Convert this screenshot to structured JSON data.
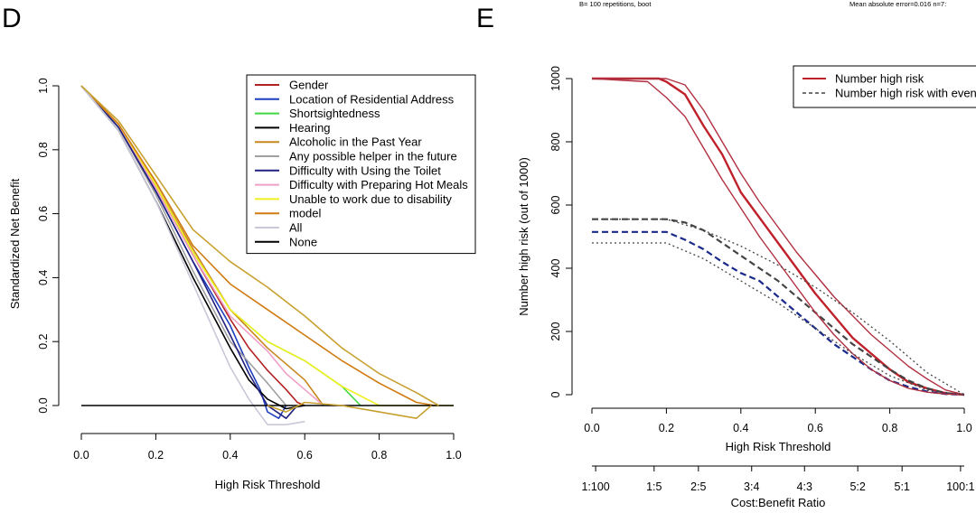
{
  "panel_d": {
    "letter": "D",
    "chart_data": {
      "type": "line",
      "title": "",
      "xlabel": "High Risk Threshold",
      "ylabel": "Standardized Net Benefit",
      "xlim": [
        0,
        1
      ],
      "ylim": [
        -0.05,
        1.0
      ],
      "x_ticks": [
        0,
        0.2,
        0.4,
        0.6,
        0.8,
        1.0
      ],
      "x_tick_labels": [
        "0.0",
        "0.2",
        "0.4",
        "0.6",
        "0.8",
        "1.0"
      ],
      "y_ticks": [
        0,
        0.2,
        0.4,
        0.6,
        0.8,
        1.0
      ],
      "y_tick_labels": [
        "0.0",
        "0.2",
        "0.4",
        "0.6",
        "0.8",
        "1.0"
      ],
      "legend_position": "top-right",
      "series": [
        {
          "name": "Gender",
          "color": "#b22222",
          "x": [
            0,
            0.1,
            0.2,
            0.3,
            0.4,
            0.45,
            0.5,
            0.55,
            0.58,
            0.6
          ],
          "y": [
            1.0,
            0.88,
            0.68,
            0.47,
            0.27,
            0.18,
            0.11,
            0.05,
            0.01,
            0.0
          ]
        },
        {
          "name": "Location of Residential Address",
          "color": "#1f3fbf",
          "x": [
            0,
            0.1,
            0.2,
            0.3,
            0.4,
            0.45,
            0.48,
            0.5,
            0.53,
            0.55
          ],
          "y": [
            1.0,
            0.87,
            0.67,
            0.45,
            0.25,
            0.12,
            0.05,
            -0.02,
            -0.04,
            0.0
          ]
        },
        {
          "name": "Shortsightedness",
          "color": "#40d840",
          "x": [
            0,
            0.1,
            0.2,
            0.3,
            0.4,
            0.5,
            0.6,
            0.7,
            0.75
          ],
          "y": [
            1.0,
            0.88,
            0.69,
            0.48,
            0.3,
            0.2,
            0.14,
            0.06,
            0.0
          ]
        },
        {
          "name": "Hearing",
          "color": "#000000",
          "x": [
            0,
            0.1,
            0.2,
            0.3,
            0.4,
            0.45,
            0.5,
            0.55,
            0.6
          ],
          "y": [
            1.0,
            0.86,
            0.64,
            0.4,
            0.18,
            0.08,
            0.02,
            -0.01,
            0.0
          ]
        },
        {
          "name": "Alcoholic in the Past Year",
          "color": "#c8861e",
          "x": [
            0,
            0.1,
            0.2,
            0.3,
            0.4,
            0.5,
            0.6,
            0.65
          ],
          "y": [
            1.0,
            0.88,
            0.69,
            0.49,
            0.3,
            0.18,
            0.08,
            0.0
          ]
        },
        {
          "name": "Any possible helper in the future",
          "color": "#a0a0a0",
          "x": [
            0,
            0.1,
            0.2,
            0.3,
            0.4,
            0.5,
            0.55
          ],
          "y": [
            1.0,
            0.87,
            0.66,
            0.42,
            0.2,
            0.07,
            0.0
          ]
        },
        {
          "name": "Difficulty with Using the Toilet",
          "color": "#202080",
          "x": [
            0,
            0.1,
            0.2,
            0.3,
            0.4,
            0.45,
            0.5,
            0.55,
            0.58
          ],
          "y": [
            1.0,
            0.87,
            0.67,
            0.45,
            0.22,
            0.1,
            0.0,
            -0.04,
            0.0
          ]
        },
        {
          "name": "Difficulty with Preparing Hot Meals",
          "color": "#f0a0c8",
          "x": [
            0,
            0.1,
            0.2,
            0.3,
            0.4,
            0.5,
            0.55,
            0.6,
            0.65
          ],
          "y": [
            1.0,
            0.88,
            0.68,
            0.47,
            0.28,
            0.17,
            0.1,
            0.05,
            0.0
          ]
        },
        {
          "name": "Unable to work due to disability",
          "color": "#f0f020",
          "x": [
            0,
            0.1,
            0.2,
            0.3,
            0.4,
            0.5,
            0.6,
            0.7,
            0.8,
            1.0
          ],
          "y": [
            1.0,
            0.88,
            0.69,
            0.48,
            0.3,
            0.2,
            0.14,
            0.06,
            0.0,
            0.0
          ]
        },
        {
          "name": "model",
          "color": "#d07a10",
          "x": [
            0,
            0.1,
            0.2,
            0.3,
            0.4,
            0.5,
            0.6,
            0.7,
            0.8,
            0.9,
            0.95
          ],
          "y": [
            1.0,
            0.88,
            0.7,
            0.5,
            0.38,
            0.3,
            0.22,
            0.14,
            0.07,
            0.01,
            0.0
          ]
        },
        {
          "name": "All",
          "color": "#c8c8d8",
          "x": [
            0,
            0.1,
            0.2,
            0.3,
            0.4,
            0.45,
            0.5,
            0.55,
            0.6
          ],
          "y": [
            1.0,
            0.86,
            0.64,
            0.38,
            0.12,
            0.02,
            -0.06,
            -0.06,
            -0.05
          ]
        },
        {
          "name": "None",
          "color": "#000000",
          "x": [
            0,
            1.0
          ],
          "y": [
            0,
            0
          ]
        },
        {
          "name": "model-upper",
          "color": "#c8a030",
          "legend": false,
          "x": [
            0,
            0.1,
            0.2,
            0.3,
            0.4,
            0.5,
            0.6,
            0.7,
            0.8,
            0.9,
            0.96
          ],
          "y": [
            1.0,
            0.89,
            0.72,
            0.55,
            0.45,
            0.37,
            0.28,
            0.18,
            0.1,
            0.04,
            0.0
          ]
        },
        {
          "name": "model-lower",
          "color": "#c8a030",
          "legend": false,
          "x": [
            0.5,
            0.55,
            0.6,
            0.7,
            0.8,
            0.9,
            0.94
          ],
          "y": [
            0.0,
            -0.02,
            0.01,
            0.0,
            -0.02,
            -0.04,
            0.0
          ]
        }
      ]
    }
  },
  "panel_e": {
    "letter": "E",
    "note_left": "B= 100 repetitions, boot",
    "note_right": "Mean absolute error=0.016 n=7:",
    "chart_data": {
      "type": "line",
      "title": "",
      "xlabel": "High Risk Threshold",
      "ylabel": "Number high risk (out of 1000)",
      "xlim": [
        0,
        1
      ],
      "ylim": [
        0,
        1000
      ],
      "x_ticks": [
        0,
        0.2,
        0.4,
        0.6,
        0.8,
        1.0
      ],
      "x_tick_labels": [
        "0.0",
        "0.2",
        "0.4",
        "0.6",
        "0.8",
        "1.0"
      ],
      "y_ticks": [
        0,
        200,
        400,
        600,
        800,
        1000
      ],
      "y_tick_labels": [
        "0",
        "200",
        "400",
        "600",
        "800",
        "1000"
      ],
      "secondary_axis": {
        "label": "Cost:Benefit Ratio",
        "tick_labels": [
          "1:100",
          "1:5",
          "2:5",
          "3:4",
          "4:3",
          "5:2",
          "5:1",
          "100:1"
        ],
        "tick_positions": [
          0.01,
          0.167,
          0.286,
          0.429,
          0.571,
          0.714,
          0.833,
          0.99
        ]
      },
      "legend_position": "top-right",
      "series": [
        {
          "name": "Number high risk",
          "color": "#c0202a",
          "dash": "solid",
          "x": [
            0,
            0.18,
            0.2,
            0.25,
            0.3,
            0.35,
            0.4,
            0.45,
            0.5,
            0.55,
            0.6,
            0.65,
            0.7,
            0.75,
            0.8,
            0.85,
            0.9,
            0.95,
            1.0
          ],
          "y": [
            1000,
            1000,
            990,
            950,
            850,
            760,
            640,
            560,
            480,
            400,
            320,
            250,
            180,
            130,
            80,
            40,
            20,
            5,
            0
          ]
        },
        {
          "name": "Number high risk with event",
          "color": "#444444",
          "dash": "dashed",
          "x": [
            0,
            0.2,
            0.25,
            0.3,
            0.35,
            0.4,
            0.45,
            0.5,
            0.55,
            0.6,
            0.65,
            0.7,
            0.75,
            0.8,
            0.85,
            0.9,
            0.95,
            1.0
          ],
          "y": [
            555,
            555,
            545,
            520,
            480,
            440,
            400,
            360,
            310,
            260,
            210,
            160,
            120,
            80,
            45,
            20,
            5,
            0
          ]
        },
        {
          "name": "Number high risk (bootstrap mean)",
          "color": "#1a2a8a",
          "dash": "dashed",
          "legend": false,
          "x": [
            0,
            0.2,
            0.25,
            0.3,
            0.35,
            0.4,
            0.45,
            0.5,
            0.55,
            0.6,
            0.65,
            0.7,
            0.75,
            0.8,
            0.85,
            0.9,
            0.95,
            1.0
          ],
          "y": [
            515,
            515,
            490,
            460,
            420,
            385,
            360,
            310,
            260,
            210,
            160,
            120,
            80,
            45,
            25,
            10,
            2,
            0
          ]
        },
        {
          "name": "upper-bound-red",
          "color": "#b03040",
          "dash": "solid",
          "legend": false,
          "x": [
            0,
            0.2,
            0.25,
            0.3,
            0.35,
            0.4,
            0.45,
            0.5,
            0.55,
            0.6,
            0.65,
            0.7,
            0.75,
            0.8,
            0.85,
            0.9,
            0.95,
            1.0
          ],
          "y": [
            1000,
            1000,
            980,
            900,
            800,
            700,
            610,
            530,
            450,
            380,
            310,
            250,
            190,
            140,
            90,
            50,
            15,
            0
          ]
        },
        {
          "name": "lower-bound-red",
          "color": "#b03040",
          "dash": "solid",
          "legend": false,
          "x": [
            0,
            0.15,
            0.2,
            0.25,
            0.3,
            0.35,
            0.4,
            0.45,
            0.5,
            0.55,
            0.6,
            0.65,
            0.7,
            0.75,
            0.8,
            0.85,
            0.9,
            0.95,
            1.0
          ],
          "y": [
            1000,
            990,
            940,
            880,
            780,
            680,
            590,
            500,
            420,
            340,
            260,
            190,
            130,
            80,
            45,
            20,
            8,
            2,
            0
          ]
        },
        {
          "name": "upper-bound-dotted",
          "color": "#444444",
          "dash": "dotted",
          "legend": false,
          "x": [
            0,
            0.2,
            0.3,
            0.4,
            0.5,
            0.6,
            0.7,
            0.8,
            0.9,
            1.0
          ],
          "y": [
            555,
            555,
            520,
            470,
            410,
            340,
            260,
            170,
            70,
            0
          ]
        },
        {
          "name": "lower-bound-dotted",
          "color": "#444444",
          "dash": "dotted",
          "legend": false,
          "x": [
            0,
            0.2,
            0.3,
            0.4,
            0.5,
            0.6,
            0.7,
            0.8,
            0.9,
            1.0
          ],
          "y": [
            480,
            480,
            430,
            360,
            290,
            210,
            130,
            60,
            15,
            0
          ]
        }
      ]
    }
  }
}
